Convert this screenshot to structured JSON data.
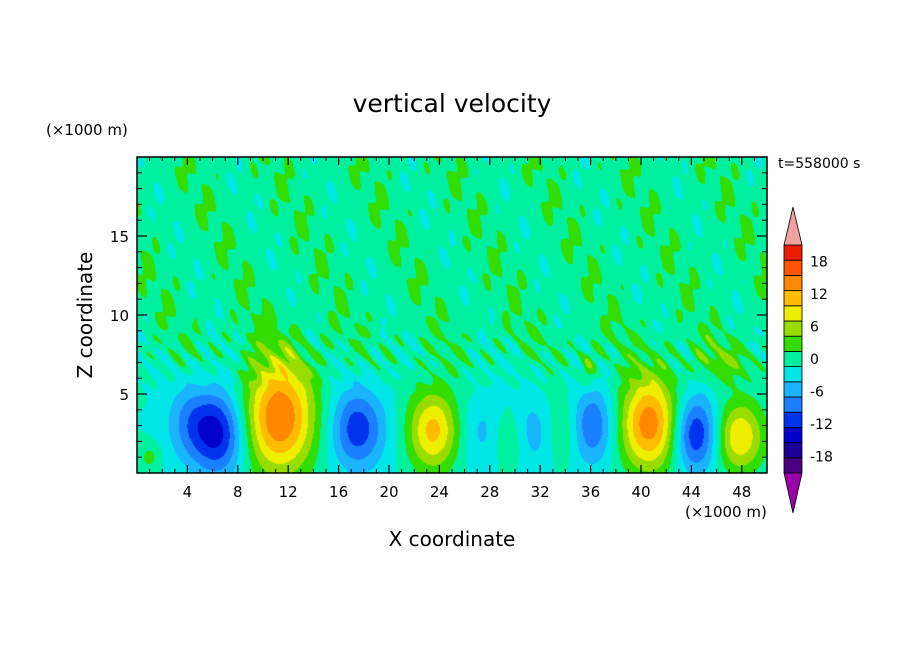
{
  "chart_data": {
    "type": "heatmap",
    "title": "vertical velocity",
    "xlabel": "X coordinate",
    "ylabel": "Z coordinate",
    "x_unit": "(×1000 m)",
    "z_unit": "(×1000 m)",
    "time_label": "t=558000 s",
    "xlim": [
      0,
      50
    ],
    "ylim": [
      0,
      20
    ],
    "x_ticks": [
      4,
      8,
      12,
      16,
      20,
      24,
      28,
      32,
      36,
      40,
      44,
      48
    ],
    "y_ticks": [
      5,
      10,
      15
    ],
    "colorbar": {
      "levels": [
        -21,
        -18,
        -15,
        -12,
        -9,
        -6,
        -3,
        0,
        3,
        6,
        9,
        12,
        15,
        18,
        21
      ],
      "tick_labels": [
        18,
        12,
        6,
        0,
        -6,
        -12,
        -18
      ],
      "colors": [
        "#4b0082",
        "#1a0099",
        "#0000cc",
        "#0033ee",
        "#1a80ff",
        "#1ab4ff",
        "#00e6e6",
        "#00f0a0",
        "#33dd00",
        "#99dd00",
        "#eeee00",
        "#ffbb00",
        "#ff8800",
        "#ff5500",
        "#ee1c00"
      ],
      "under_color": "#9900aa",
      "over_color": "#f0a0a0"
    },
    "features": [
      {
        "x": 11.3,
        "z": 3.5,
        "amp": 18,
        "sx": 2.0,
        "sz": 2.5
      },
      {
        "x": 6.5,
        "z": 2.5,
        "amp": -13,
        "sx": 1.5,
        "sz": 1.9
      },
      {
        "x": 4.2,
        "z": 3.2,
        "amp": -6,
        "sx": 1.3,
        "sz": 1.7
      },
      {
        "x": 17.5,
        "z": 2.8,
        "amp": -11,
        "sx": 1.5,
        "sz": 1.8
      },
      {
        "x": 23.5,
        "z": 2.7,
        "amp": 13,
        "sx": 1.4,
        "sz": 1.8
      },
      {
        "x": 27.5,
        "z": 2.6,
        "amp": -4,
        "sx": 1.2,
        "sz": 1.6
      },
      {
        "x": 29.5,
        "z": 2.2,
        "amp": 4,
        "sx": 1.0,
        "sz": 1.3
      },
      {
        "x": 31.5,
        "z": 2.6,
        "amp": -5,
        "sx": 1.2,
        "sz": 1.6
      },
      {
        "x": 34.0,
        "z": 2.8,
        "amp": 5,
        "sx": 1.2,
        "sz": 1.5
      },
      {
        "x": 36.0,
        "z": 3.0,
        "amp": -10,
        "sx": 1.3,
        "sz": 1.7
      },
      {
        "x": 35.8,
        "z": 6.6,
        "amp": 5,
        "sx": 0.5,
        "sz": 0.8
      },
      {
        "x": 40.7,
        "z": 3.1,
        "amp": 17,
        "sx": 1.7,
        "sz": 2.1
      },
      {
        "x": 44.3,
        "z": 2.5,
        "amp": -13,
        "sx": 1.3,
        "sz": 1.7
      },
      {
        "x": 47.8,
        "z": 2.3,
        "amp": 12,
        "sx": 1.4,
        "sz": 1.6
      },
      {
        "x": 46.5,
        "z": 7.0,
        "amp": 4,
        "sx": 1.6,
        "sz": 0.9
      },
      {
        "x": 1.0,
        "z": 1.0,
        "amp": 4,
        "sx": 0.6,
        "sz": 0.6
      }
    ]
  }
}
